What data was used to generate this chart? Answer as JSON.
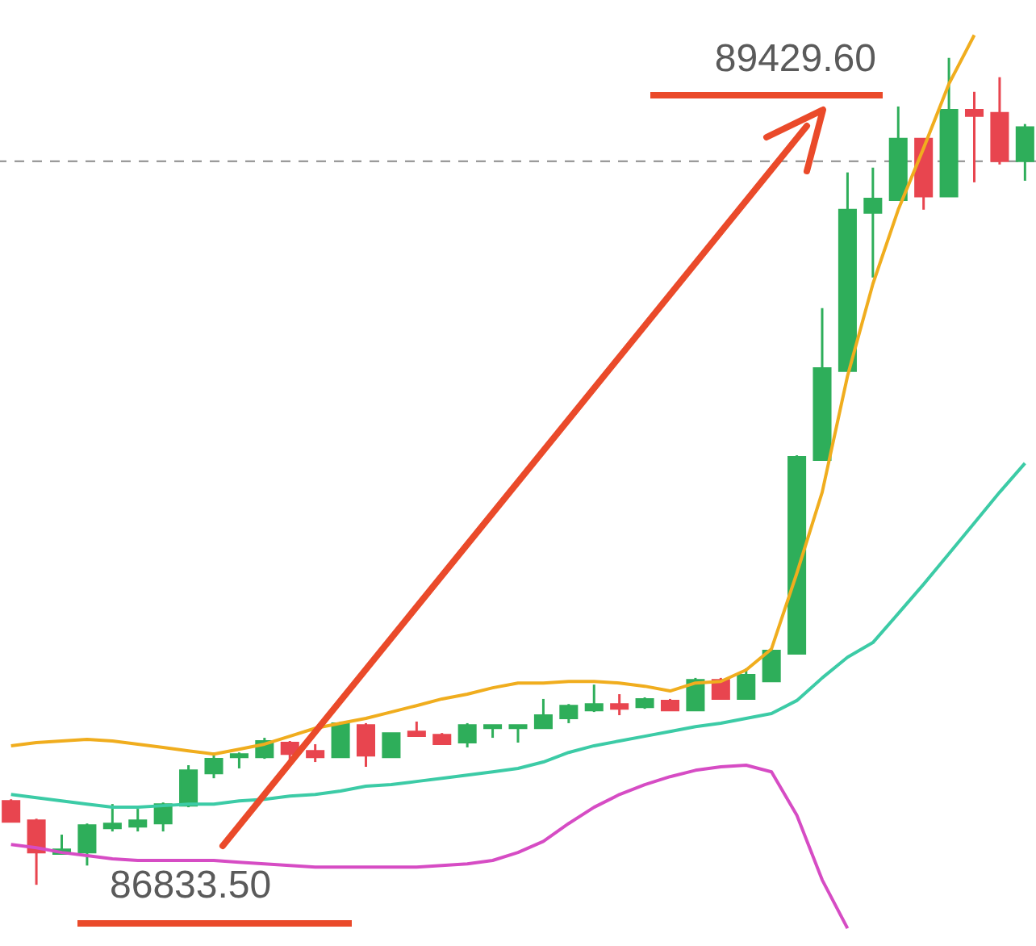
{
  "chart_data": {
    "type": "candlestick",
    "categories": [
      null,
      null,
      null,
      null,
      null,
      null,
      null,
      null,
      null,
      null,
      null,
      null,
      null,
      null,
      null,
      null,
      null,
      null,
      null,
      null,
      null,
      null,
      null,
      null,
      null,
      null,
      null,
      null,
      null,
      null,
      null,
      null,
      null,
      null,
      null,
      null,
      null,
      null,
      null,
      null,
      null
    ],
    "ohlc": [
      [
        87097,
        87102,
        87031,
        87031
      ],
      [
        87036,
        87041,
        86833.5,
        86935
      ],
      [
        86930,
        86991,
        86930,
        86945
      ],
      [
        86935,
        87026,
        86894,
        87021
      ],
      [
        87011,
        87087,
        87001,
        87026
      ],
      [
        87016,
        87072,
        87001,
        87036
      ],
      [
        87026,
        87092,
        87001,
        87087
      ],
      [
        87082,
        87209,
        87077,
        87193
      ],
      [
        87183,
        87249,
        87168,
        87229
      ],
      [
        87234,
        87249,
        87199,
        87244
      ],
      [
        87234,
        87295,
        87229,
        87285
      ],
      [
        87280,
        87285,
        87224,
        87244
      ],
      [
        87254,
        87275,
        87219,
        87234
      ],
      [
        87234,
        87346,
        87234,
        87341
      ],
      [
        87335,
        87341,
        87204,
        87239
      ],
      [
        87234,
        87310,
        87234,
        87310
      ],
      [
        87315,
        87346,
        87300,
        87300
      ],
      [
        87305,
        87310,
        87275,
        87275
      ],
      [
        87280,
        87341,
        87265,
        87335
      ],
      [
        87325,
        87335,
        87295,
        87335
      ],
      [
        87325,
        87335,
        87280,
        87335
      ],
      [
        87325,
        87417,
        87325,
        87366
      ],
      [
        87356,
        87401,
        87341,
        87396
      ],
      [
        87381,
        87462,
        87376,
        87401
      ],
      [
        87401,
        87432,
        87366,
        87386
      ],
      [
        87391,
        87422,
        87386,
        87417
      ],
      [
        87412,
        87417,
        87381,
        87381
      ],
      [
        87381,
        87483,
        87381,
        87477
      ],
      [
        87477,
        87483,
        87417,
        87417
      ],
      [
        87417,
        87513,
        87417,
        87493
      ],
      [
        87472,
        87574,
        87472,
        87569
      ],
      [
        87559,
        88182,
        87559,
        88177
      ],
      [
        88167,
        88644,
        88167,
        88456
      ],
      [
        88446,
        89070,
        88446,
        88953
      ],
      [
        88943,
        89085,
        88740,
        88988
      ],
      [
        88983,
        89277,
        88983,
        89176
      ],
      [
        89176,
        89176,
        88953,
        88994
      ],
      [
        88994,
        89429.6,
        88994,
        89267
      ],
      [
        89267,
        89323,
        89039,
        89247
      ],
      [
        89257,
        89369,
        89095,
        89105
      ],
      [
        89105,
        89222,
        89044,
        89212
      ]
    ],
    "colors": [
      "#e8454f",
      "#e8454f",
      "#2eae5a",
      "#2eae5a",
      "#2eae5a",
      "#2eae5a",
      "#2eae5a",
      "#2eae5a",
      "#2eae5a",
      "#2eae5a",
      "#2eae5a",
      "#e8454f",
      "#e8454f",
      "#2eae5a",
      "#e8454f",
      "#2eae5a",
      "#e8454f",
      "#e8454f",
      "#2eae5a",
      "#2eae5a",
      "#2eae5a",
      "#2eae5a",
      "#2eae5a",
      "#2eae5a",
      "#e8454f",
      "#2eae5a",
      "#e8454f",
      "#2eae5a",
      "#e8454f",
      "#2eae5a",
      "#2eae5a",
      "#2eae5a",
      "#2eae5a",
      "#2eae5a",
      "#2eae5a",
      "#2eae5a",
      "#e8454f",
      "#2eae5a",
      "#e8454f",
      "#e8454f",
      "#2eae5a"
    ],
    "series": [
      {
        "type": "line",
        "color": "#f0ad1e",
        "values": [
          87270,
          87280,
          87285,
          87290,
          87285,
          87275,
          87265,
          87254,
          87244,
          87259,
          87275,
          87300,
          87325,
          87341,
          87356,
          87376,
          87396,
          87417,
          87432,
          87452,
          87467,
          87467,
          87472,
          87472,
          87467,
          87457,
          87442,
          87467,
          87472,
          87508,
          87574,
          87812,
          88066,
          88431,
          88720,
          88953,
          89146,
          89348,
          89501,
          null,
          null
        ]
      },
      {
        "type": "line",
        "color": "#3ccba6",
        "values": [
          87117,
          87107,
          87097,
          87087,
          87077,
          87077,
          87082,
          87087,
          87087,
          87097,
          87102,
          87112,
          87117,
          87128,
          87143,
          87148,
          87158,
          87168,
          87178,
          87188,
          87199,
          87219,
          87249,
          87270,
          87285,
          87300,
          87315,
          87330,
          87341,
          87356,
          87371,
          87412,
          87483,
          87548,
          87594,
          87685,
          87777,
          87873,
          87969,
          88066,
          88157
        ]
      },
      {
        "type": "line",
        "color": "#d64cc4",
        "values": [
          86960,
          86950,
          86935,
          86925,
          86915,
          86910,
          86910,
          86910,
          86910,
          86904,
          86899,
          86894,
          86889,
          86889,
          86889,
          86889,
          86889,
          86894,
          86899,
          86910,
          86935,
          86970,
          87026,
          87077,
          87117,
          87148,
          87173,
          87193,
          87204,
          87209,
          87188,
          87052,
          86849,
          86697,
          null,
          null,
          null,
          null,
          null,
          null,
          null
        ]
      }
    ],
    "ref_lines": [
      {
        "axis": "y",
        "value": 89105,
        "color": "#8a8a8a",
        "line_style": "dashed"
      }
    ],
    "annotations": [
      "89429.60",
      "86833.50"
    ]
  }
}
